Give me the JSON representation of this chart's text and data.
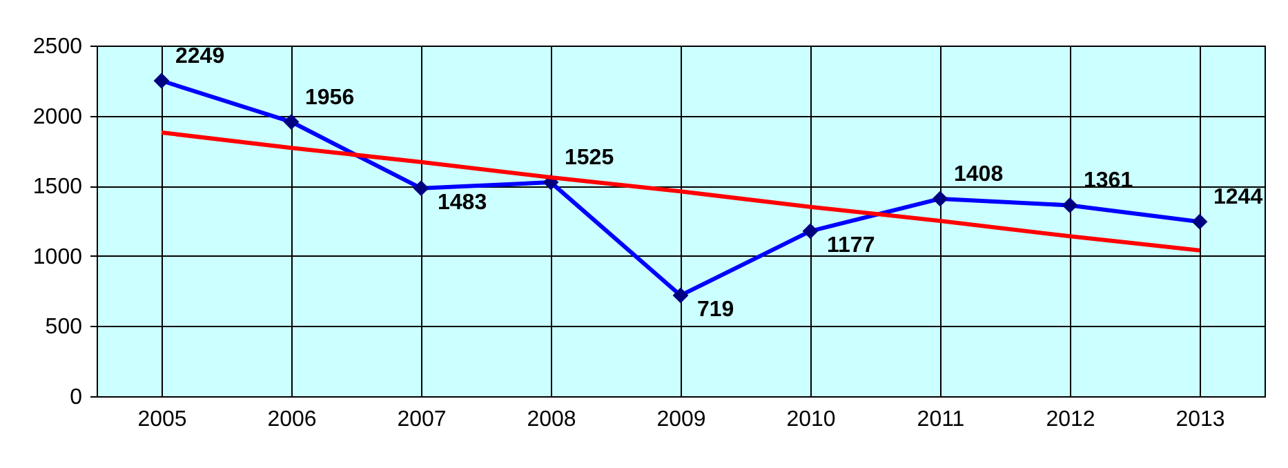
{
  "chart_data": {
    "type": "line",
    "categories": [
      "2005",
      "2006",
      "2007",
      "2008",
      "2009",
      "2010",
      "2011",
      "2012",
      "2013"
    ],
    "series": [
      {
        "color": "#0000ff",
        "values": [
          2249,
          1956,
          1483,
          1525,
          719,
          1177,
          1408,
          1361,
          1244
        ]
      },
      {
        "type": "line",
        "color": "#ff0000",
        "values": [
          1880,
          1770,
          1670,
          1560,
          1460,
          1350,
          1250,
          1140,
          1040
        ],
        "value_labels": [
          null,
          null,
          null,
          null,
          null,
          null,
          null,
          null,
          null
        ],
        "marker": "none"
      }
    ],
    "ylim": [
      0,
      2500
    ],
    "yticks": [
      0,
      500,
      1000,
      1500,
      2000,
      2500
    ],
    "grid": true,
    "marker": "diamond",
    "data_labels": true
  }
}
